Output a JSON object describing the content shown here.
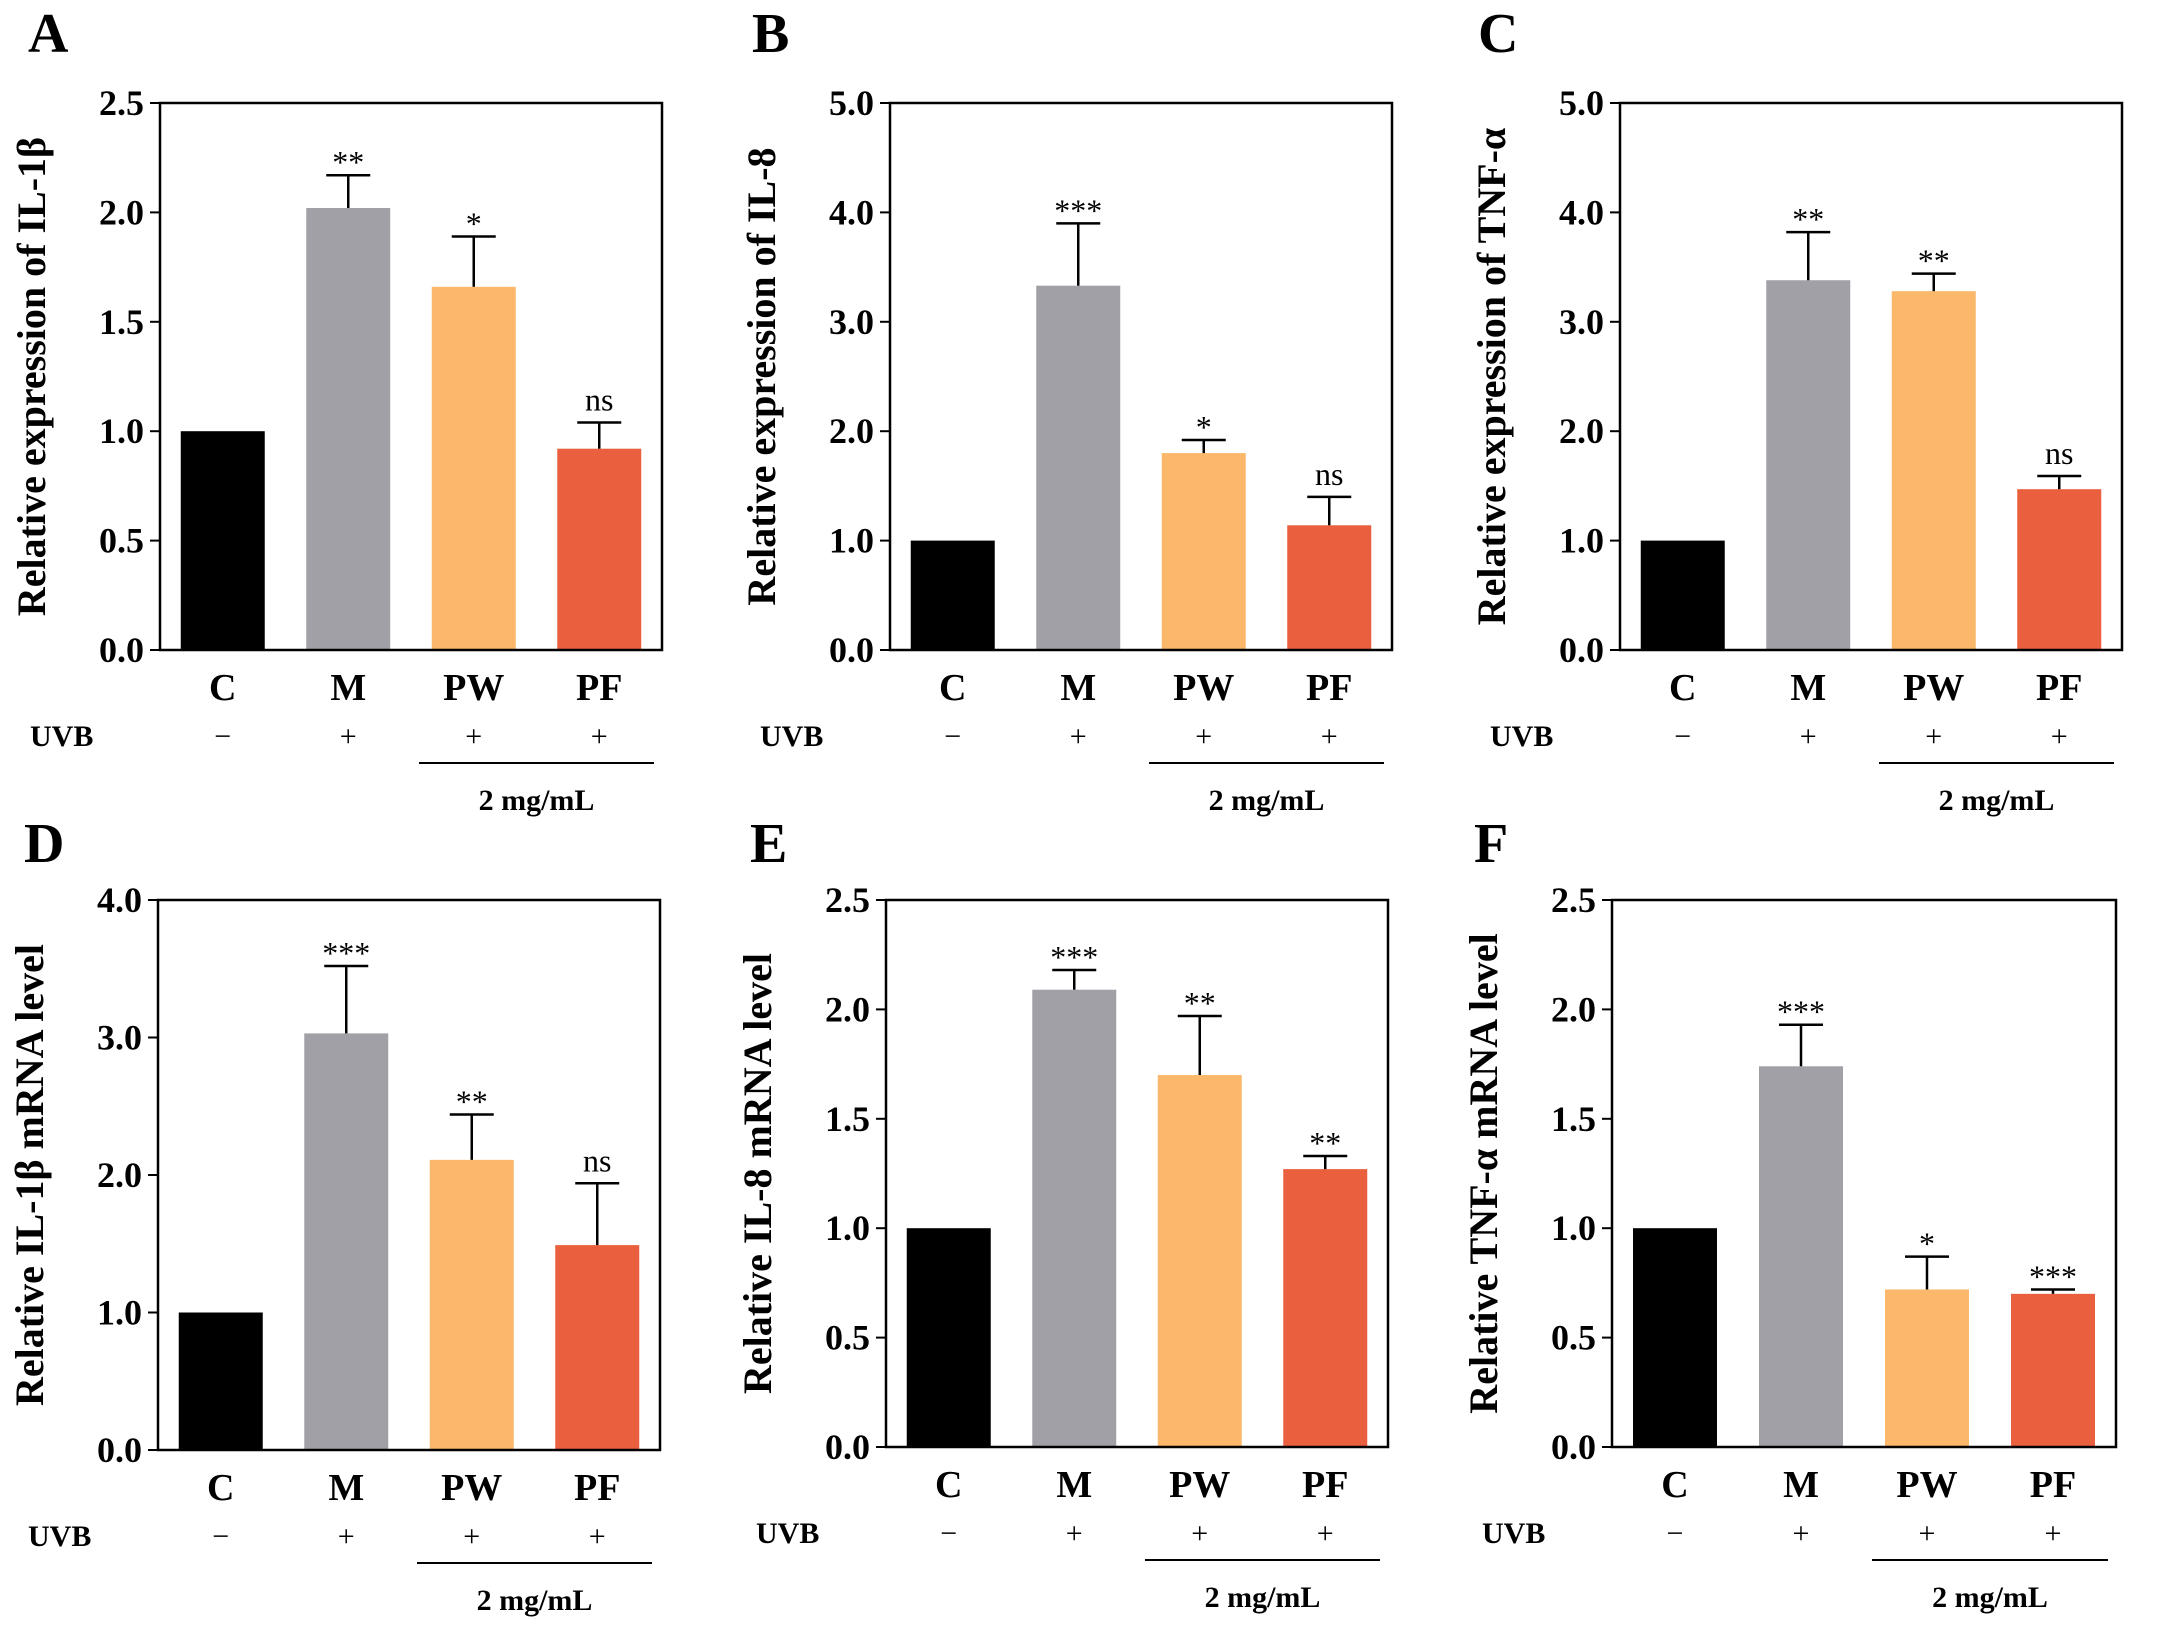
{
  "figure": {
    "uvb_label": "UVB",
    "dose_label": "2 mg/mL",
    "categories": [
      "C",
      "M",
      "PW",
      "PF"
    ],
    "uvb_signs": [
      "−",
      "+",
      "+",
      "+"
    ],
    "bar_colors": [
      "#000000",
      "#a2a0a7",
      "#fbb86a",
      "#ea5f3d"
    ]
  },
  "chart_data": [
    {
      "panel": "A",
      "type": "bar",
      "ylabel": "Relative expression of IL-1β",
      "ylim": [
        0,
        2.5
      ],
      "yticks": [
        "0.0",
        "0.5",
        "1.0",
        "1.5",
        "2.0",
        "2.5"
      ],
      "categories": [
        "C",
        "M",
        "PW",
        "PF"
      ],
      "values": [
        1.0,
        2.02,
        1.66,
        0.92
      ],
      "errors": [
        0,
        0.15,
        0.23,
        0.12
      ],
      "significance": [
        "",
        "**",
        "*",
        "ns"
      ]
    },
    {
      "panel": "B",
      "type": "bar",
      "ylabel": "Relative expression of IL-8",
      "ylim": [
        0,
        5.0
      ],
      "yticks": [
        "0.0",
        "1.0",
        "2.0",
        "3.0",
        "4.0",
        "5.0"
      ],
      "categories": [
        "C",
        "M",
        "PW",
        "PF"
      ],
      "values": [
        1.0,
        3.33,
        1.8,
        1.14
      ],
      "errors": [
        0,
        0.57,
        0.12,
        0.26
      ],
      "significance": [
        "",
        "***",
        "*",
        "ns"
      ]
    },
    {
      "panel": "C",
      "type": "bar",
      "ylabel": "Relative expression of TNF-α",
      "ylim": [
        0,
        5.0
      ],
      "yticks": [
        "0.0",
        "1.0",
        "2.0",
        "3.0",
        "4.0",
        "5.0"
      ],
      "categories": [
        "C",
        "M",
        "PW",
        "PF"
      ],
      "values": [
        1.0,
        3.38,
        3.28,
        1.47
      ],
      "errors": [
        0,
        0.44,
        0.16,
        0.12
      ],
      "significance": [
        "",
        "**",
        "**",
        "ns"
      ]
    },
    {
      "panel": "D",
      "type": "bar",
      "ylabel": "Relative IL-1β mRNA level",
      "ylim": [
        0,
        4.0
      ],
      "yticks": [
        "0.0",
        "1.0",
        "2.0",
        "3.0",
        "4.0"
      ],
      "categories": [
        "C",
        "M",
        "PW",
        "PF"
      ],
      "values": [
        1.0,
        3.03,
        2.11,
        1.49
      ],
      "errors": [
        0,
        0.49,
        0.33,
        0.45
      ],
      "significance": [
        "",
        "***",
        "**",
        "ns"
      ]
    },
    {
      "panel": "E",
      "type": "bar",
      "ylabel": "Relative IL-8 mRNA level",
      "ylim": [
        0,
        2.5
      ],
      "yticks": [
        "0.0",
        "0.5",
        "1.0",
        "1.5",
        "2.0",
        "2.5"
      ],
      "categories": [
        "C",
        "M",
        "PW",
        "PF"
      ],
      "values": [
        1.0,
        2.09,
        1.7,
        1.27
      ],
      "errors": [
        0,
        0.09,
        0.27,
        0.06
      ],
      "significance": [
        "",
        "***",
        "**",
        "**"
      ]
    },
    {
      "panel": "F",
      "type": "bar",
      "ylabel": "Relative TNF-α mRNA level",
      "ylim": [
        0,
        2.5
      ],
      "yticks": [
        "0.0",
        "0.5",
        "1.0",
        "1.5",
        "2.0",
        "2.5"
      ],
      "categories": [
        "C",
        "M",
        "PW",
        "PF"
      ],
      "values": [
        1.0,
        1.74,
        0.72,
        0.7
      ],
      "errors": [
        0,
        0.19,
        0.15,
        0.02
      ],
      "significance": [
        "",
        "***",
        "*",
        "***"
      ]
    }
  ]
}
